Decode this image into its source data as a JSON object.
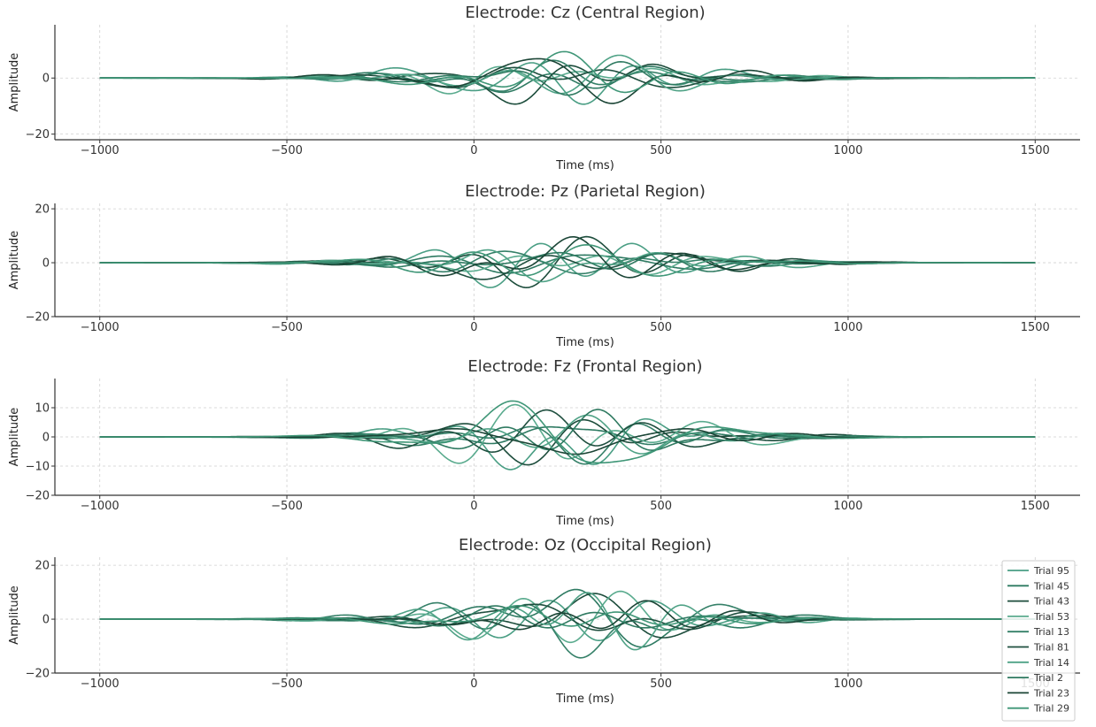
{
  "chart_data": [
    {
      "type": "line",
      "title": "Electrode: Cz (Central Region)",
      "xlabel": "Time (ms)",
      "ylabel": "Amplitude",
      "xlim": [
        -1120,
        1620
      ],
      "ylim": [
        -22,
        19
      ],
      "xticks": [
        -1000,
        -500,
        0,
        500,
        1000,
        1500
      ],
      "xticklabels": [
        "−1000",
        "−500",
        "0",
        "500",
        "1000",
        "1500"
      ],
      "yticks": [
        -20,
        0
      ],
      "yticklabels": [
        "−20",
        "0"
      ],
      "grid": true,
      "signal": {
        "x_range": [
          -1000,
          1500
        ],
        "center": 250,
        "sigma": 430,
        "peak_amplitude": 10
      }
    },
    {
      "type": "line",
      "title": "Electrode: Pz (Parietal Region)",
      "xlabel": "Time (ms)",
      "ylabel": "Amplitude",
      "xlim": [
        -1120,
        1620
      ],
      "ylim": [
        -20,
        22
      ],
      "xticks": [
        -1000,
        -500,
        0,
        500,
        1000,
        1500
      ],
      "xticklabels": [
        "−1000",
        "−500",
        "0",
        "500",
        "1000",
        "1500"
      ],
      "yticks": [
        -20,
        0,
        20
      ],
      "yticklabels": [
        "−20",
        "0",
        "20"
      ],
      "grid": true,
      "signal": {
        "x_range": [
          -1000,
          1500
        ],
        "center": 250,
        "sigma": 430,
        "peak_amplitude": 10
      }
    },
    {
      "type": "line",
      "title": "Electrode: Fz (Frontal Region)",
      "xlabel": "Time (ms)",
      "ylabel": "Amplitude",
      "xlim": [
        -1120,
        1620
      ],
      "ylim": [
        -20,
        20
      ],
      "xticks": [
        -1000,
        -500,
        0,
        500,
        1000,
        1500
      ],
      "xticklabels": [
        "−1000",
        "−500",
        "0",
        "500",
        "1000",
        "1500"
      ],
      "yticks": [
        -20,
        -10,
        0,
        10
      ],
      "yticklabels": [
        "−20",
        "−10",
        "0",
        "10"
      ],
      "grid": true,
      "signal": {
        "x_range": [
          -1000,
          1500
        ],
        "center": 250,
        "sigma": 430,
        "peak_amplitude": 10
      }
    },
    {
      "type": "line",
      "title": "Electrode: Oz (Occipital Region)",
      "xlabel": "Time (ms)",
      "ylabel": "Amplitude",
      "xlim": [
        -1120,
        1620
      ],
      "ylim": [
        -20,
        23
      ],
      "xticks": [
        -1000,
        -500,
        0,
        500,
        1000,
        1500
      ],
      "xticklabels": [
        "−1000",
        "−500",
        "0",
        "500",
        "1000",
        "1500"
      ],
      "yticks": [
        -20,
        0,
        20
      ],
      "yticklabels": [
        "−20",
        "0",
        "20"
      ],
      "grid": true,
      "signal": {
        "x_range": [
          -1000,
          1500
        ],
        "center": 250,
        "sigma": 430,
        "peak_amplitude": 10
      }
    }
  ],
  "legend": {
    "placement": "lower-right",
    "entries": [
      {
        "name": "Trial 95",
        "color": "#4a9e84"
      },
      {
        "name": "Trial 45",
        "color": "#2e7a62"
      },
      {
        "name": "Trial 43",
        "color": "#1d4d3c"
      },
      {
        "name": "Trial 53",
        "color": "#5aab8e"
      },
      {
        "name": "Trial 13",
        "color": "#358068"
      },
      {
        "name": "Trial 81",
        "color": "#1f4f3f"
      },
      {
        "name": "Trial 14",
        "color": "#4fa286"
      },
      {
        "name": "Trial 2",
        "color": "#2f7a61"
      },
      {
        "name": "Trial 23",
        "color": "#1b4536"
      },
      {
        "name": "Trial 29",
        "color": "#3f9677"
      }
    ]
  }
}
